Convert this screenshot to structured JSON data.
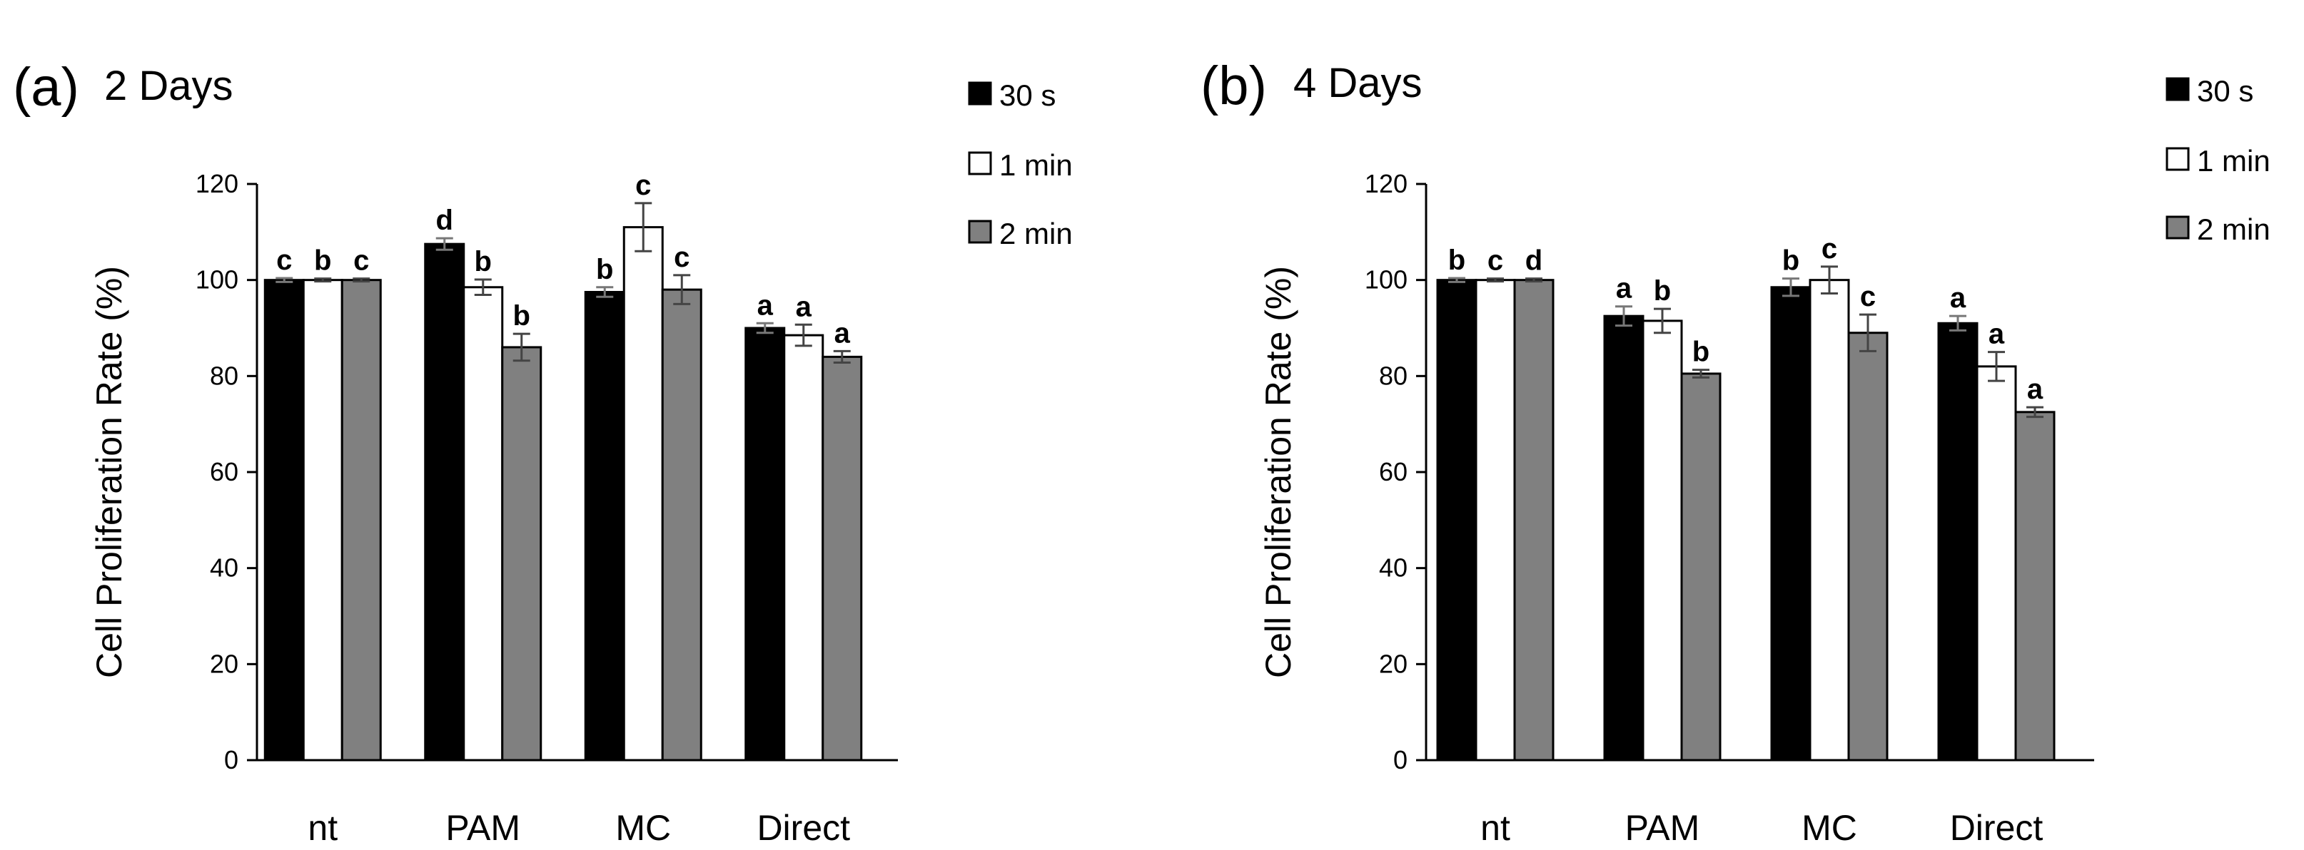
{
  "chart_data": [
    {
      "type": "bar",
      "panel": "(a)",
      "title": "2 Days",
      "ylabel": "Cell Proliferation Rate (%)",
      "xlabel": "",
      "ylim": [
        0,
        120
      ],
      "yticks": [
        0,
        20,
        40,
        60,
        80,
        100,
        120
      ],
      "categories": [
        "nt",
        "PAM",
        "MC",
        "Direct"
      ],
      "series": [
        {
          "name": "30 s",
          "color": "#000000",
          "values": [
            100,
            107.5,
            97.5,
            90
          ],
          "errors": [
            0.4,
            1.2,
            1.0,
            1.0
          ],
          "labels": [
            "c",
            "d",
            "b",
            "a"
          ]
        },
        {
          "name": "1 min",
          "color": "#ffffff",
          "values": [
            100,
            98.5,
            111,
            88.5
          ],
          "errors": [
            0.3,
            1.6,
            5.0,
            2.2
          ],
          "labels": [
            "b",
            "b",
            "c",
            "a"
          ]
        },
        {
          "name": "2 min",
          "color": "#808080",
          "values": [
            100,
            86,
            98,
            84
          ],
          "errors": [
            0.3,
            2.8,
            3.0,
            1.2
          ],
          "labels": [
            "c",
            "b",
            "c",
            "a"
          ]
        }
      ],
      "legend_position": "top-right"
    },
    {
      "type": "bar",
      "panel": "(b)",
      "title": "4 Days",
      "ylabel": "Cell Proliferation Rate (%)",
      "xlabel": "",
      "ylim": [
        0,
        120
      ],
      "yticks": [
        0,
        20,
        40,
        60,
        80,
        100,
        120
      ],
      "categories": [
        "nt",
        "PAM",
        "MC",
        "Direct"
      ],
      "series": [
        {
          "name": "30 s",
          "color": "#000000",
          "values": [
            100,
            92.5,
            98.5,
            91
          ],
          "errors": [
            0.4,
            2.0,
            1.8,
            1.5
          ],
          "labels": [
            "b",
            "a",
            "b",
            "a"
          ]
        },
        {
          "name": "1 min",
          "color": "#ffffff",
          "values": [
            100,
            91.5,
            100,
            82
          ],
          "errors": [
            0.3,
            2.5,
            2.8,
            3.0
          ],
          "labels": [
            "c",
            "b",
            "c",
            "a"
          ]
        },
        {
          "name": "2 min",
          "color": "#808080",
          "values": [
            100,
            80.5,
            89,
            72.5
          ],
          "errors": [
            0.3,
            0.8,
            3.8,
            1.0
          ],
          "labels": [
            "d",
            "b",
            "c",
            "a"
          ]
        }
      ],
      "legend_position": "top-right"
    }
  ]
}
